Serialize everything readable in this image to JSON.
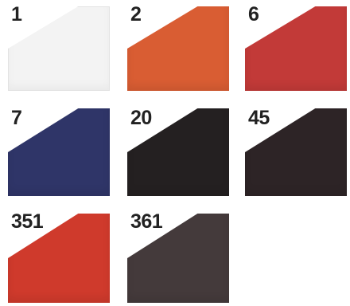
{
  "swatches": [
    {
      "code": "1",
      "color": "#f3f3f3",
      "light": true
    },
    {
      "code": "2",
      "color": "#d95d33"
    },
    {
      "code": "6",
      "color": "#c23a38"
    },
    {
      "code": "7",
      "color": "#2f3568"
    },
    {
      "code": "20",
      "color": "#242021"
    },
    {
      "code": "45",
      "color": "#2d2426"
    },
    {
      "code": "351",
      "color": "#cf3a2c"
    },
    {
      "code": "361",
      "color": "#443a3b"
    }
  ]
}
